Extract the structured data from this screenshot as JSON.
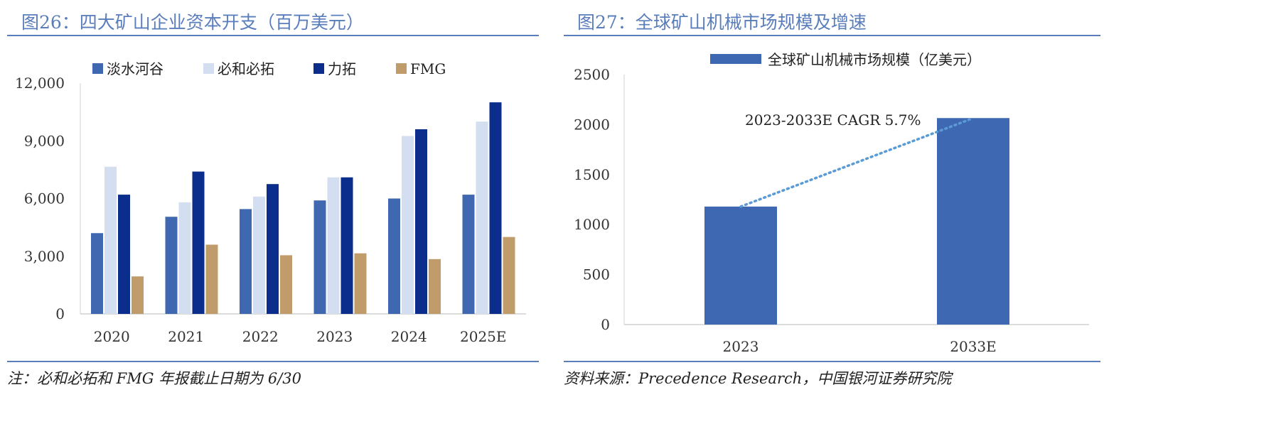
{
  "left": {
    "title": "图26：四大矿山企业资本开支（百万美元）",
    "note": "注：必和必拓和 FMG 年报截止日期为 6/30"
  },
  "right": {
    "title": "图27：全球矿山机械市场规模及增速",
    "source": "资料来源：Precedence Research，中国银河证券研究院",
    "annotation": "2023-2033E CAGR 5.7%"
  },
  "chart_data": [
    {
      "type": "bar",
      "title": "",
      "xlabel": "",
      "ylabel": "",
      "categories": [
        "2020",
        "2021",
        "2022",
        "2023",
        "2024",
        "2025E"
      ],
      "series": [
        {
          "name": "淡水河谷",
          "color": "#4068b0",
          "values": [
            4200,
            5050,
            5450,
            5900,
            6000,
            6200
          ]
        },
        {
          "name": "必和必拓",
          "color": "#d3def0",
          "values": [
            7650,
            5800,
            6100,
            7100,
            9250,
            10000
          ]
        },
        {
          "name": "力拓",
          "color": "#0b2d8c",
          "values": [
            6200,
            7400,
            6750,
            7100,
            9600,
            11000
          ]
        },
        {
          "name": "FMG",
          "color": "#bf9c6a",
          "values": [
            1950,
            3600,
            3050,
            3150,
            2850,
            4000
          ]
        }
      ],
      "ylim": [
        0,
        12000
      ],
      "yticks": [
        "0",
        "3,000",
        "6,000",
        "9,000",
        "12,000"
      ],
      "grid": false,
      "legend": "top"
    },
    {
      "type": "bar",
      "title": "",
      "xlabel": "",
      "ylabel": "",
      "categories": [
        "2023",
        "2033E"
      ],
      "series": [
        {
          "name": "全球矿山机械市场规模（亿美元）",
          "color": "#3f68b2",
          "values": [
            1180,
            2065
          ]
        }
      ],
      "ylim": [
        0,
        2500
      ],
      "yticks": [
        "0",
        "500",
        "1000",
        "1500",
        "2000",
        "2500"
      ],
      "grid": false,
      "legend": "top",
      "trendline": {
        "style": "dotted",
        "color": "#5b9bd5",
        "from": "2023",
        "to": "2033E"
      }
    }
  ]
}
